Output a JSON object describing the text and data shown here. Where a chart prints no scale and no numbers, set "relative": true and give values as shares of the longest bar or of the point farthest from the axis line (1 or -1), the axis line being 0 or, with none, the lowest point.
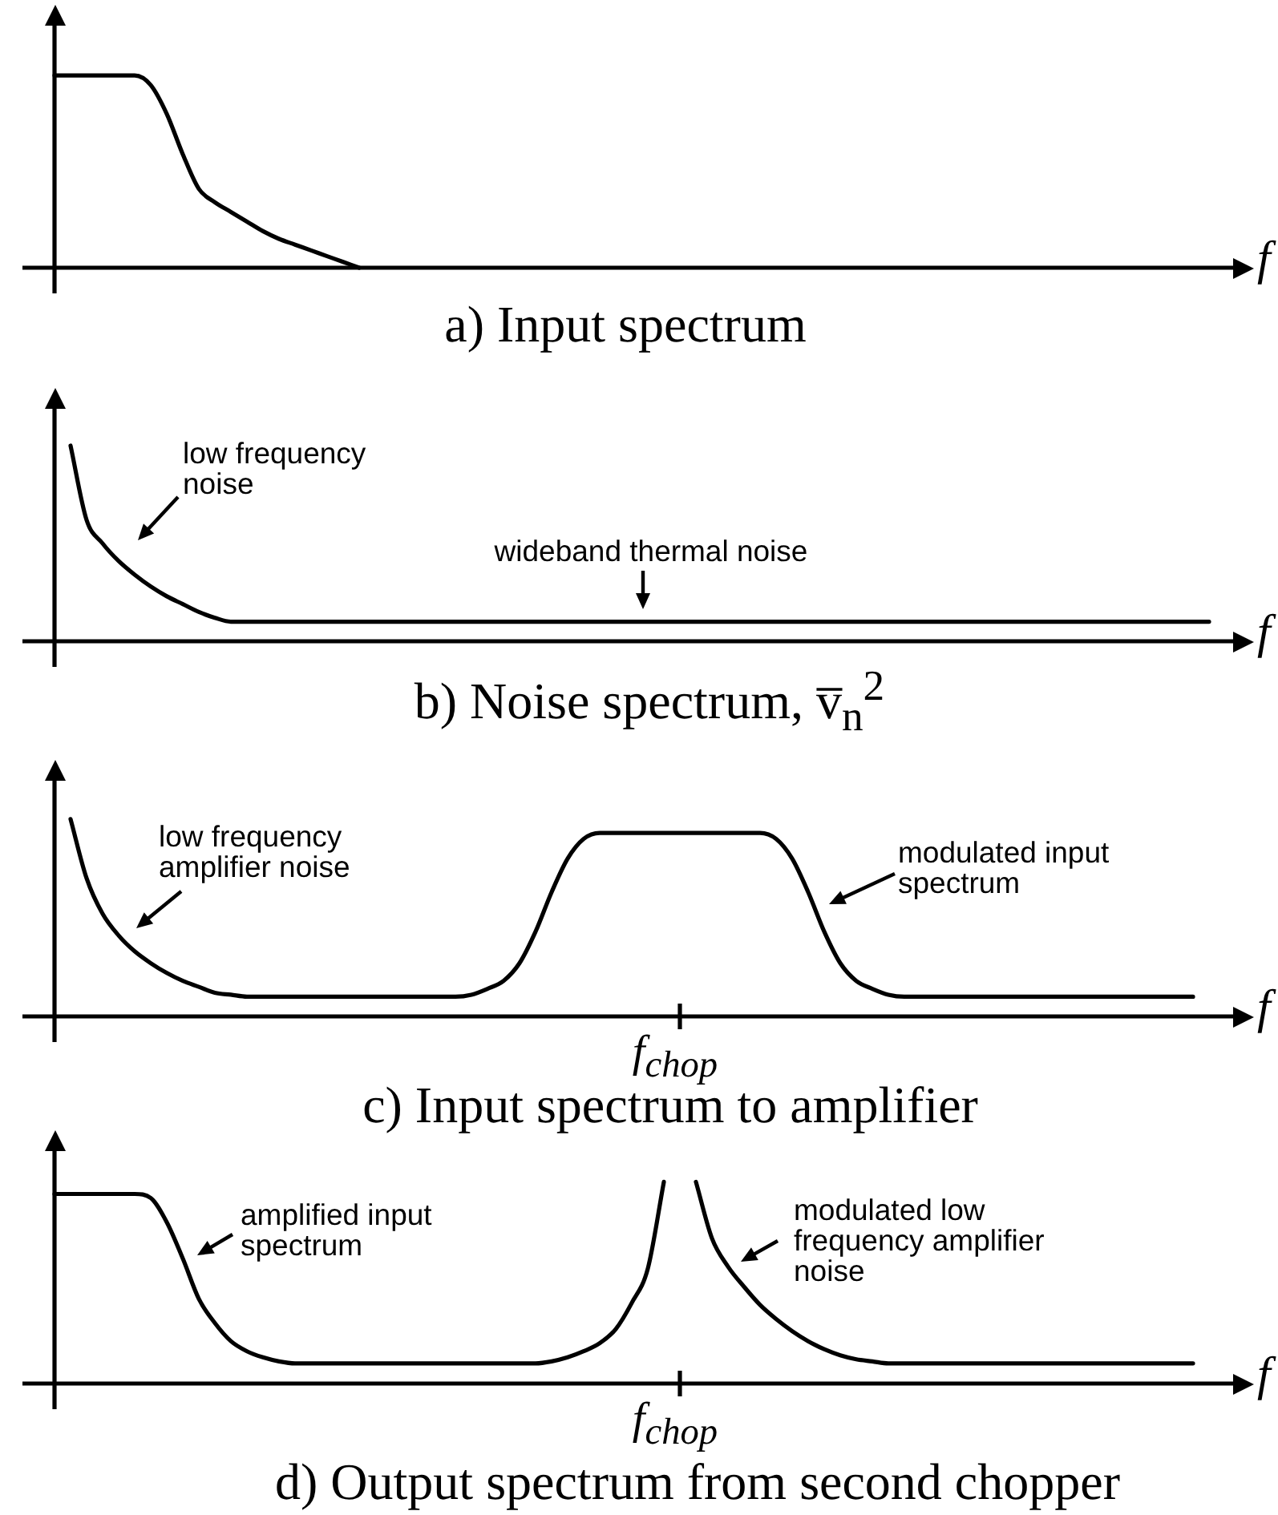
{
  "chart_data": [
    {
      "type": "line",
      "title": "a) Input spectrum",
      "xlabel": "f",
      "relative": true,
      "marker": "none",
      "color": "#000000",
      "categories": [
        null,
        null,
        null,
        null,
        null,
        null,
        null,
        null,
        null,
        null,
        null,
        null,
        null,
        null,
        null,
        null,
        null,
        null,
        null,
        null,
        null,
        null,
        null,
        null,
        null,
        null,
        null,
        null,
        null,
        null,
        null,
        null,
        null,
        null,
        null,
        null,
        null,
        null,
        null,
        null,
        null,
        null,
        null,
        null,
        null,
        null,
        null,
        null,
        null,
        null,
        null,
        null,
        null,
        null,
        null,
        null,
        null,
        null,
        null,
        null,
        null,
        null,
        null,
        null,
        null,
        null,
        null,
        null,
        null,
        null,
        null,
        null,
        null,
        null,
        null
      ],
      "values": [
        1,
        1,
        1,
        1,
        1,
        1,
        0.95,
        0.8,
        0.59,
        0.41,
        0.34,
        0.29,
        0.24,
        0.19,
        0.15,
        0.12,
        0.09,
        0.06,
        0.03,
        0,
        null,
        null,
        null,
        null,
        null,
        null,
        null,
        null,
        null,
        null,
        null,
        null,
        null,
        null,
        null,
        null,
        null,
        null,
        null,
        null,
        null,
        null,
        null,
        null,
        null,
        null,
        null,
        null,
        null,
        null,
        null,
        null,
        null,
        null,
        null,
        null,
        null,
        null,
        null,
        null,
        null,
        null,
        null,
        null,
        null,
        null,
        null,
        null,
        null,
        null,
        null,
        null,
        null,
        null,
        null
      ]
    },
    {
      "type": "line",
      "title": "b) Noise spectrum, v̅$_{n}$$^{2}$",
      "xlabel": "f",
      "relative": true,
      "marker": "none",
      "color": "#000000",
      "annotations": [
        "low frequency noise",
        "wideband thermal noise"
      ],
      "categories": [
        null,
        null,
        null,
        null,
        null,
        null,
        null,
        null,
        null,
        null,
        null,
        null,
        null,
        null,
        null,
        null,
        null,
        null,
        null,
        null,
        null,
        null,
        null,
        null,
        null,
        null,
        null,
        null,
        null,
        null,
        null,
        null,
        null,
        null,
        null,
        null,
        null,
        null,
        null,
        null,
        null,
        null,
        null,
        null,
        null,
        null,
        null,
        null,
        null,
        null,
        null,
        null,
        null,
        null,
        null,
        null,
        null,
        null,
        null,
        null,
        null,
        null,
        null,
        null,
        null,
        null,
        null,
        null,
        null,
        null,
        null,
        null,
        null,
        null,
        null
      ],
      "values": [
        null,
        1,
        0.62,
        0.5,
        0.41,
        0.34,
        0.28,
        0.23,
        0.19,
        0.15,
        0.12,
        0.1,
        0.1,
        0.1,
        0.1,
        0.1,
        0.1,
        0.1,
        0.1,
        0.1,
        0.1,
        0.1,
        0.1,
        0.1,
        0.1,
        0.1,
        0.1,
        0.1,
        0.1,
        0.1,
        0.1,
        0.1,
        0.1,
        0.1,
        0.1,
        0.1,
        0.1,
        0.1,
        0.1,
        0.1,
        0.1,
        0.1,
        0.1,
        0.1,
        0.1,
        0.1,
        0.1,
        0.1,
        0.1,
        0.1,
        0.1,
        0.1,
        0.1,
        0.1,
        0.1,
        0.1,
        0.1,
        0.1,
        0.1,
        0.1,
        0.1,
        0.1,
        0.1,
        0.1,
        0.1,
        0.1,
        0.1,
        0.1,
        0.1,
        0.1,
        0.1,
        0.1,
        0.1,
        null,
        null
      ]
    },
    {
      "type": "line",
      "title": "c) Input spectrum to amplifier",
      "xlabel": "f",
      "relative": true,
      "marker": "none",
      "color": "#000000",
      "annotations": [
        "low frequency amplifier noise",
        "modulated input spectrum",
        "f$_{chop}$"
      ],
      "categories": [
        null,
        null,
        null,
        null,
        null,
        null,
        null,
        null,
        null,
        null,
        null,
        null,
        null,
        null,
        null,
        null,
        null,
        null,
        null,
        null,
        null,
        null,
        null,
        null,
        null,
        null,
        null,
        null,
        null,
        null,
        null,
        null,
        null,
        null,
        null,
        null,
        null,
        null,
        null,
        null,
        null,
        null,
        null,
        null,
        null,
        null,
        null,
        null,
        null,
        null,
        null,
        null,
        null,
        null,
        null,
        null,
        null,
        null,
        null,
        null,
        null,
        null,
        null,
        null,
        null,
        null,
        null,
        null,
        null,
        null,
        null,
        null,
        null,
        null,
        null
      ],
      "values": [
        null,
        1,
        0.7,
        0.52,
        0.41,
        0.33,
        0.27,
        0.22,
        0.18,
        0.15,
        0.12,
        0.11,
        0.1,
        0.1,
        0.1,
        0.1,
        0.1,
        0.1,
        0.1,
        0.1,
        0.1,
        0.1,
        0.1,
        0.1,
        0.1,
        0.1,
        0.11,
        0.14,
        0.18,
        0.27,
        0.43,
        0.63,
        0.8,
        0.9,
        0.93,
        0.93,
        0.93,
        0.93,
        0.93,
        0.93,
        0.93,
        0.93,
        0.93,
        0.93,
        0.93,
        0.9,
        0.8,
        0.63,
        0.43,
        0.27,
        0.18,
        0.14,
        0.11,
        0.1,
        0.1,
        0.1,
        0.1,
        0.1,
        0.1,
        0.1,
        0.1,
        0.1,
        0.1,
        0.1,
        0.1,
        0.1,
        0.1,
        0.1,
        0.1,
        0.1,
        0.1,
        0.1,
        null,
        null,
        null
      ]
    },
    {
      "type": "line",
      "title": "d) Output spectrum from second chopper",
      "xlabel": "f",
      "relative": true,
      "marker": "none",
      "color": "#000000",
      "annotations": [
        "amplified input spectrum",
        "modulated low frequency amplifier noise",
        "f$_{chop}$"
      ],
      "categories": [
        null,
        null,
        null,
        null,
        null,
        null,
        null,
        null,
        null,
        null,
        null,
        null,
        null,
        null,
        null,
        null,
        null,
        null,
        null,
        null,
        null,
        null,
        null,
        null,
        null,
        null,
        null,
        null,
        null,
        null,
        null,
        null,
        null,
        null,
        null,
        null,
        null,
        null,
        null,
        null,
        null,
        null,
        null,
        null,
        null,
        null,
        null,
        null,
        null,
        null,
        null,
        null,
        null,
        null,
        null,
        null,
        null,
        null,
        null,
        null,
        null,
        null,
        null,
        null,
        null,
        null,
        null,
        null,
        null,
        null,
        null,
        null,
        null,
        null,
        null
      ],
      "values": [
        0.94,
        0.94,
        0.94,
        0.94,
        0.94,
        0.94,
        0.92,
        0.8,
        0.62,
        0.42,
        0.3,
        0.21,
        0.16,
        0.13,
        0.11,
        0.1,
        0.1,
        0.1,
        0.1,
        0.1,
        0.1,
        0.1,
        0.1,
        0.1,
        0.1,
        0.1,
        0.1,
        0.1,
        0.1,
        0.1,
        0.1,
        0.11,
        0.13,
        0.16,
        0.2,
        0.27,
        0.4,
        0.57,
        1,
        null,
        1,
        0.72,
        0.58,
        0.48,
        0.39,
        0.32,
        0.26,
        0.21,
        0.17,
        0.14,
        0.12,
        0.11,
        0.1,
        0.1,
        0.1,
        0.1,
        0.1,
        0.1,
        0.1,
        0.1,
        0.1,
        0.1,
        0.1,
        0.1,
        0.1,
        0.1,
        0.1,
        0.1,
        0.1,
        0.1,
        0.1,
        0.1,
        null,
        null,
        null
      ]
    }
  ]
}
